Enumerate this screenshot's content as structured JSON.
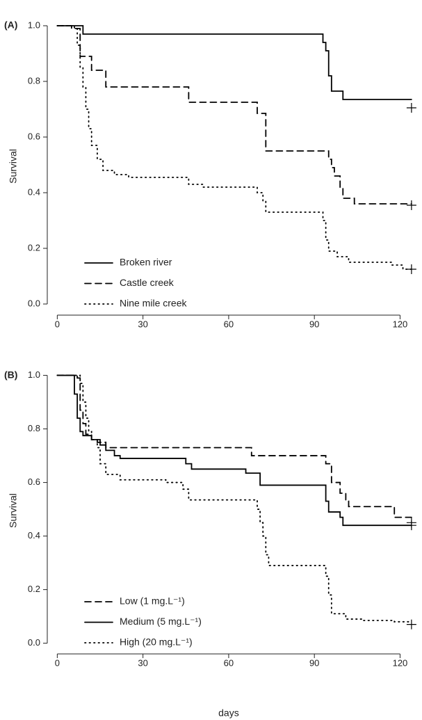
{
  "chart_data": [
    {
      "type": "step",
      "panel_label": "(A)",
      "y_label": "Survival",
      "xlim": [
        -3.5,
        125
      ],
      "ylim": [
        -0.04,
        1.03
      ],
      "xticks": [
        0,
        30,
        60,
        90,
        120
      ],
      "yticks": [
        {
          "value": 0,
          "label": "0.0"
        },
        {
          "value": 0.2,
          "label": "0.2"
        },
        {
          "value": 0.4,
          "label": "0.4"
        },
        {
          "value": 0.6,
          "label": "0.6"
        },
        {
          "value": 0.8,
          "label": "0.8"
        },
        {
          "value": 1,
          "label": "1.0"
        }
      ],
      "legend": "lower left",
      "series": [
        {
          "name": "Broken river",
          "color": "#000000",
          "line_style": "solid",
          "x": [
            0,
            9,
            93,
            94,
            95,
            96,
            100,
            124
          ],
          "values": [
            1.0,
            0.97,
            0.94,
            0.91,
            0.82,
            0.765,
            0.735,
            0.735
          ],
          "censor_x": 124,
          "censor_value": 0.705
        },
        {
          "name": "Castle creek",
          "color": "#000000",
          "line_style": "dashed",
          "x": [
            0,
            5,
            8,
            12,
            17,
            46,
            70,
            73,
            95,
            96,
            97,
            99,
            100,
            104,
            124
          ],
          "values": [
            1.0,
            0.99,
            0.89,
            0.84,
            0.78,
            0.725,
            0.685,
            0.55,
            0.52,
            0.49,
            0.46,
            0.42,
            0.38,
            0.36,
            0.36
          ],
          "censor_x": 124,
          "censor_value": 0.355
        },
        {
          "name": "Nine mile creek",
          "color": "#000000",
          "line_style": "dotted",
          "x": [
            0,
            6,
            7,
            8,
            9,
            10,
            11,
            12,
            14,
            16,
            20,
            25,
            46,
            51,
            70,
            72,
            73,
            93,
            94,
            95,
            98,
            102,
            117,
            121,
            124
          ],
          "values": [
            1.0,
            0.99,
            0.93,
            0.85,
            0.78,
            0.7,
            0.63,
            0.57,
            0.52,
            0.48,
            0.465,
            0.455,
            0.43,
            0.42,
            0.4,
            0.37,
            0.33,
            0.3,
            0.23,
            0.19,
            0.17,
            0.15,
            0.14,
            0.125,
            0.125
          ],
          "censor_x": 124,
          "censor_value": 0.125
        }
      ]
    },
    {
      "type": "step",
      "panel_label": "(B)",
      "y_label": "Survival",
      "x_label": "days",
      "xlim": [
        -3.5,
        125
      ],
      "ylim": [
        -0.04,
        1.03
      ],
      "xticks": [
        0,
        30,
        60,
        90,
        120
      ],
      "yticks": [
        {
          "value": 0,
          "label": "0.0"
        },
        {
          "value": 0.2,
          "label": "0.2"
        },
        {
          "value": 0.4,
          "label": "0.4"
        },
        {
          "value": 0.6,
          "label": "0.6"
        },
        {
          "value": 0.8,
          "label": "0.8"
        },
        {
          "value": 1,
          "label": "1.0"
        }
      ],
      "legend": "lower left",
      "series": [
        {
          "name": "Low (1 mg.L⁻¹)",
          "color": "#000000",
          "line_style": "dashed",
          "x": [
            0,
            7,
            8,
            9,
            10,
            12,
            14,
            17,
            68,
            94,
            96,
            99,
            101,
            102,
            118,
            124
          ],
          "values": [
            1.0,
            0.99,
            0.87,
            0.82,
            0.78,
            0.76,
            0.75,
            0.73,
            0.7,
            0.67,
            0.6,
            0.56,
            0.53,
            0.51,
            0.47,
            0.47
          ],
          "censor_x": 124,
          "censor_value": 0.45
        },
        {
          "name": "Medium (5 mg.L⁻¹)",
          "color": "#000000",
          "line_style": "solid",
          "x": [
            0,
            6,
            7,
            8,
            9,
            12,
            15,
            17,
            20,
            22,
            45,
            47,
            66,
            71,
            94,
            95,
            99,
            100,
            124
          ],
          "values": [
            1.0,
            0.93,
            0.84,
            0.79,
            0.775,
            0.76,
            0.74,
            0.72,
            0.7,
            0.69,
            0.67,
            0.65,
            0.635,
            0.59,
            0.53,
            0.49,
            0.47,
            0.44,
            0.44
          ],
          "censor_x": 124,
          "censor_value": 0.44
        },
        {
          "name": "High (20 mg.L⁻¹)",
          "color": "#000000",
          "line_style": "dotted",
          "x": [
            0,
            8,
            9,
            10,
            11,
            12,
            14,
            15,
            17,
            22,
            38,
            44,
            46,
            70,
            71,
            72,
            73,
            74,
            94,
            95,
            96,
            101,
            107,
            118,
            124
          ],
          "values": [
            1.0,
            0.97,
            0.9,
            0.84,
            0.79,
            0.76,
            0.73,
            0.67,
            0.63,
            0.61,
            0.6,
            0.575,
            0.535,
            0.5,
            0.45,
            0.4,
            0.33,
            0.29,
            0.25,
            0.18,
            0.11,
            0.09,
            0.085,
            0.08,
            0.08
          ],
          "censor_x": 124,
          "censor_value": 0.07
        }
      ]
    }
  ]
}
